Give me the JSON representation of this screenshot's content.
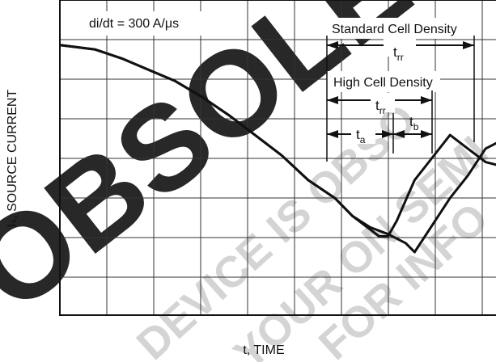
{
  "chart_data": {
    "type": "line",
    "title": "",
    "xlabel": "t, TIME",
    "ylabel": "Iₛ, SOURCE CURRENT",
    "grid": true,
    "annotations": {
      "didt": "di/dt = 300 A/μs",
      "standard": "Standard Cell Density",
      "high": "High Cell Density",
      "trr": "t",
      "trr_sub": "rr",
      "ta": "t",
      "ta_sub": "a",
      "tb": "t",
      "tb_sub": "b"
    },
    "series": [
      {
        "name": "High Cell Density",
        "x": [
          0,
          0.08,
          0.14,
          0.2,
          0.26,
          0.32,
          0.38,
          0.44,
          0.5,
          0.56,
          0.62,
          0.66,
          0.7,
          0.72,
          0.74,
          0.76,
          0.78,
          0.8,
          0.84,
          0.88,
          0.92,
          0.96,
          1.0
        ],
        "y": [
          6.0,
          5.9,
          5.7,
          5.45,
          5.2,
          4.85,
          4.45,
          4.0,
          3.55,
          3.0,
          2.6,
          2.2,
          1.9,
          1.75,
          1.75,
          2.1,
          2.55,
          3.0,
          3.5,
          4.0,
          3.7,
          3.4,
          3.3
        ]
      },
      {
        "name": "Standard Cell Density",
        "x": [
          0,
          0.08,
          0.14,
          0.2,
          0.26,
          0.32,
          0.38,
          0.44,
          0.5,
          0.56,
          0.62,
          0.66,
          0.7,
          0.74,
          0.78,
          0.8,
          0.84,
          0.88,
          0.92,
          0.96,
          1.0
        ],
        "y": [
          6.0,
          5.9,
          5.7,
          5.45,
          5.2,
          4.85,
          4.45,
          4.0,
          3.55,
          3.0,
          2.6,
          2.2,
          1.95,
          1.8,
          1.6,
          1.4,
          2.0,
          2.6,
          3.1,
          3.7,
          3.9
        ]
      }
    ],
    "xlim": [
      0,
      1
    ],
    "ylim": [
      0,
      7
    ]
  },
  "watermark": "OBSOLETE DEVICE IS OBSOLETE FOR YOUR ON SEMI FOR INFO"
}
